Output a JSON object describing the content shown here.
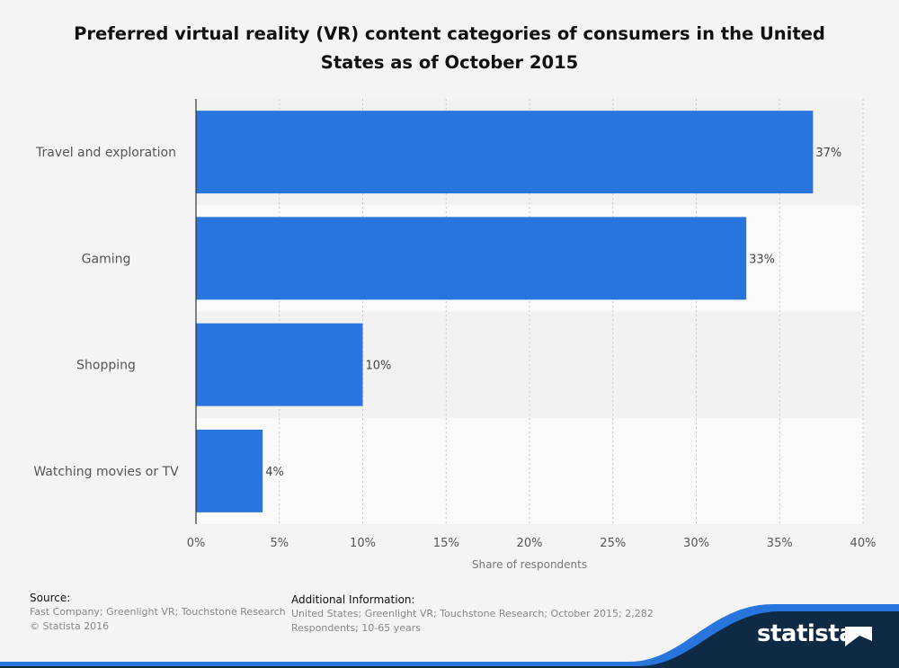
{
  "title": "Preferred virtual reality (VR) content categories of consumers in the United States as of October 2015",
  "chart_data": {
    "type": "bar",
    "orientation": "horizontal",
    "categories": [
      "Travel and exploration",
      "Gaming",
      "Shopping",
      "Watching movies or TV"
    ],
    "values": [
      37,
      33,
      10,
      4
    ],
    "value_labels": [
      "37%",
      "33%",
      "10%",
      "4%"
    ],
    "xlabel": "Share of respondents",
    "ylabel": "",
    "xlim": [
      0,
      40
    ],
    "x_ticks": [
      "0%",
      "5%",
      "10%",
      "15%",
      "20%",
      "25%",
      "30%",
      "35%",
      "40%"
    ],
    "grid": true,
    "bar_color": "#2876dd"
  },
  "footer": {
    "source_heading": "Source:",
    "source_lines": [
      "Fast Company; Greenlight VR; Touchstone Research",
      "© Statista 2016"
    ],
    "info_heading": "Additional Information:",
    "info_lines": [
      "United States; Greenlight VR; Touchstone Research; October 2015; 2,282",
      "Respondents; 10-65 years"
    ]
  },
  "brand": {
    "name": "statista",
    "dark_color": "#0f2a45",
    "accent_color": "#2876dd"
  }
}
